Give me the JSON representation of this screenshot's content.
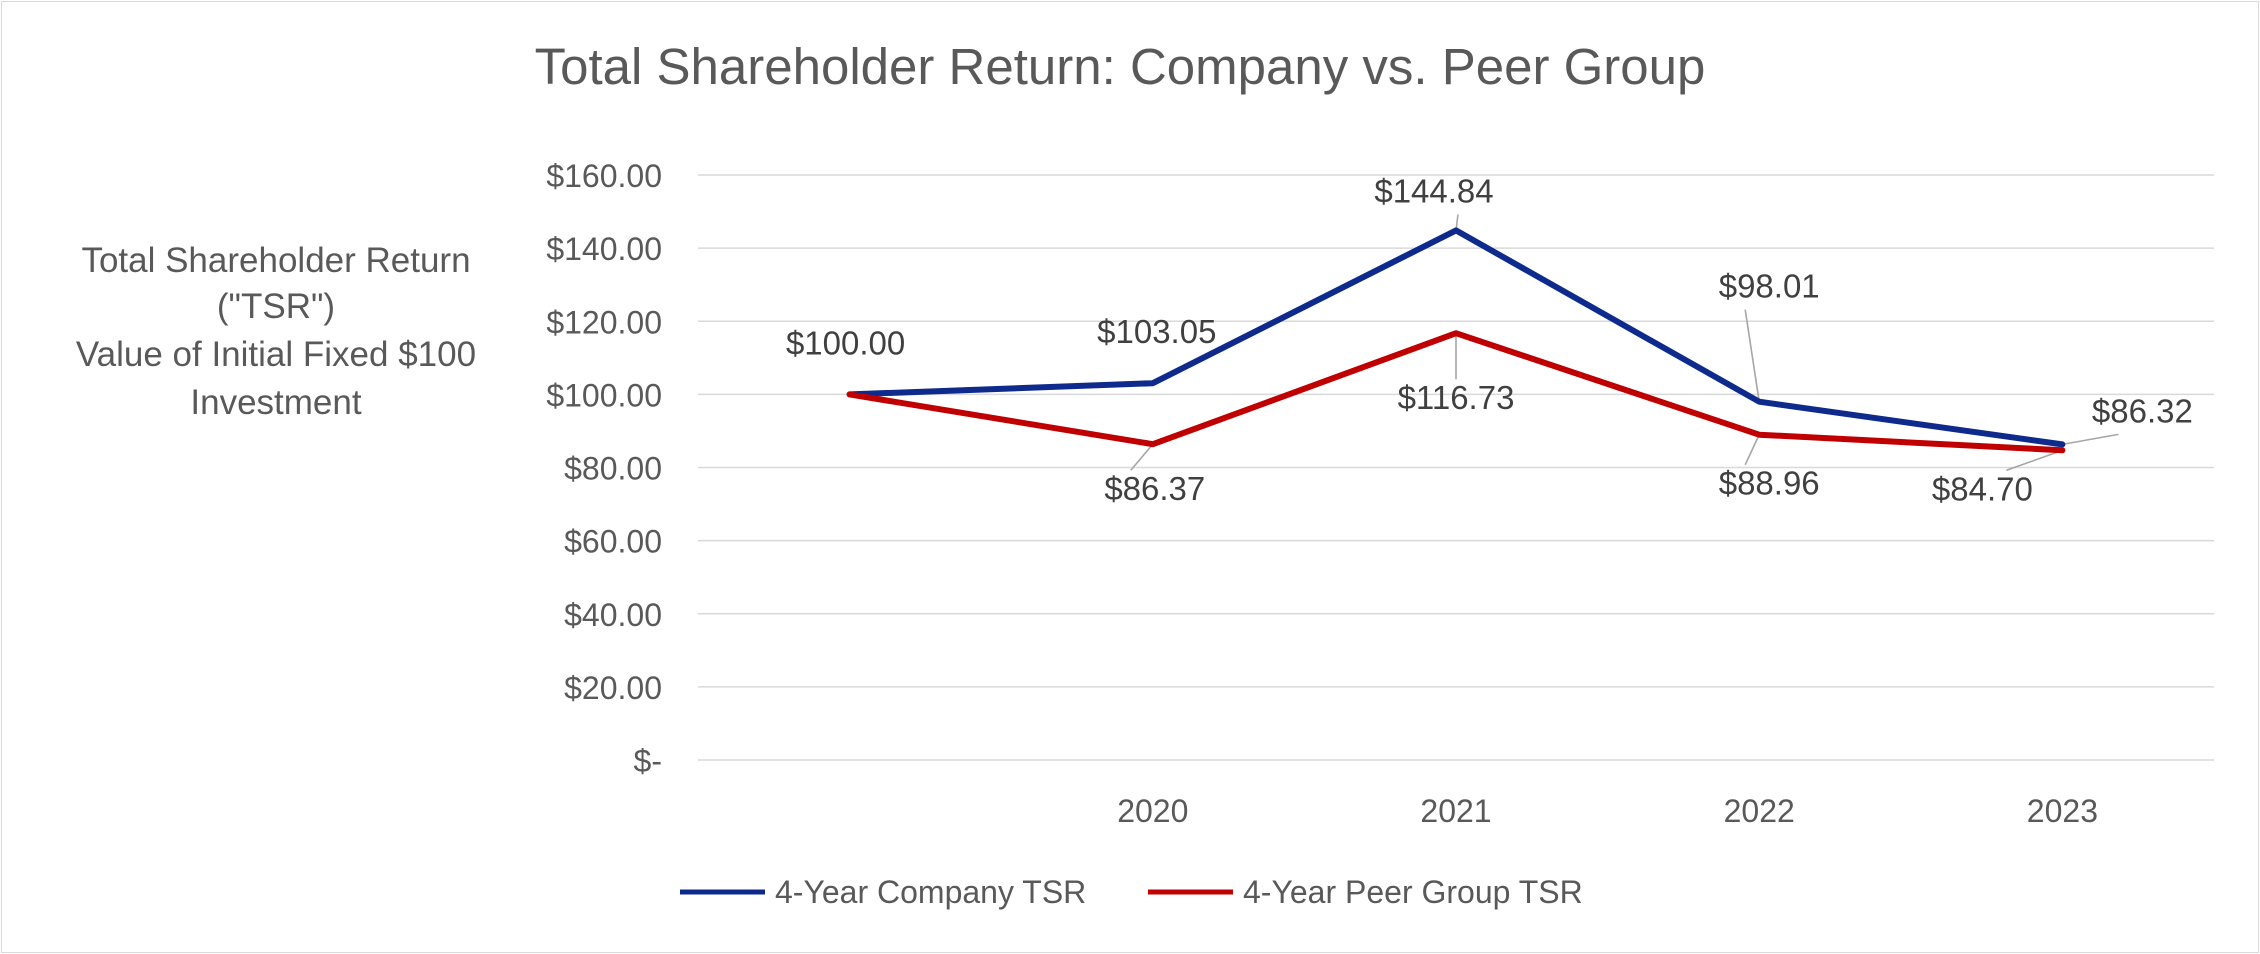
{
  "chart_data": {
    "type": "line",
    "title": "Total Shareholder Return: Company vs. Peer Group",
    "ylabel_lines": [
      "Total Shareholder Return",
      "(\"TSR\")",
      "Value of Initial Fixed $100",
      "Investment"
    ],
    "xlabel": "",
    "categories": [
      "",
      "2020",
      "2021",
      "2022",
      "2023"
    ],
    "ylim": [
      0,
      160
    ],
    "y_ticks": [
      {
        "value": 160,
        "label": "$160.00"
      },
      {
        "value": 140,
        "label": "$140.00"
      },
      {
        "value": 120,
        "label": "$120.00"
      },
      {
        "value": 100,
        "label": "$100.00"
      },
      {
        "value": 80,
        "label": "$80.00"
      },
      {
        "value": 60,
        "label": "$60.00"
      },
      {
        "value": 40,
        "label": "$40.00"
      },
      {
        "value": 20,
        "label": "$20.00"
      },
      {
        "value": 0,
        "label": "$-"
      }
    ],
    "grid": true,
    "legend_position": "bottom",
    "series": [
      {
        "name": "4-Year Company TSR",
        "color": "#0d2a8c",
        "values": [
          100,
          103.05,
          144.84,
          98.01,
          86.32
        ],
        "labels": [
          "$100.00",
          "$103.05",
          "$144.84",
          "$98.01",
          "$86.32"
        ]
      },
      {
        "name": "4-Year Peer Group TSR",
        "color": "#c00000",
        "values": [
          100,
          86.37,
          116.73,
          88.96,
          84.7
        ],
        "labels": [
          "",
          "$86.37",
          "$116.73",
          "$88.96",
          "$84.70"
        ]
      }
    ]
  }
}
